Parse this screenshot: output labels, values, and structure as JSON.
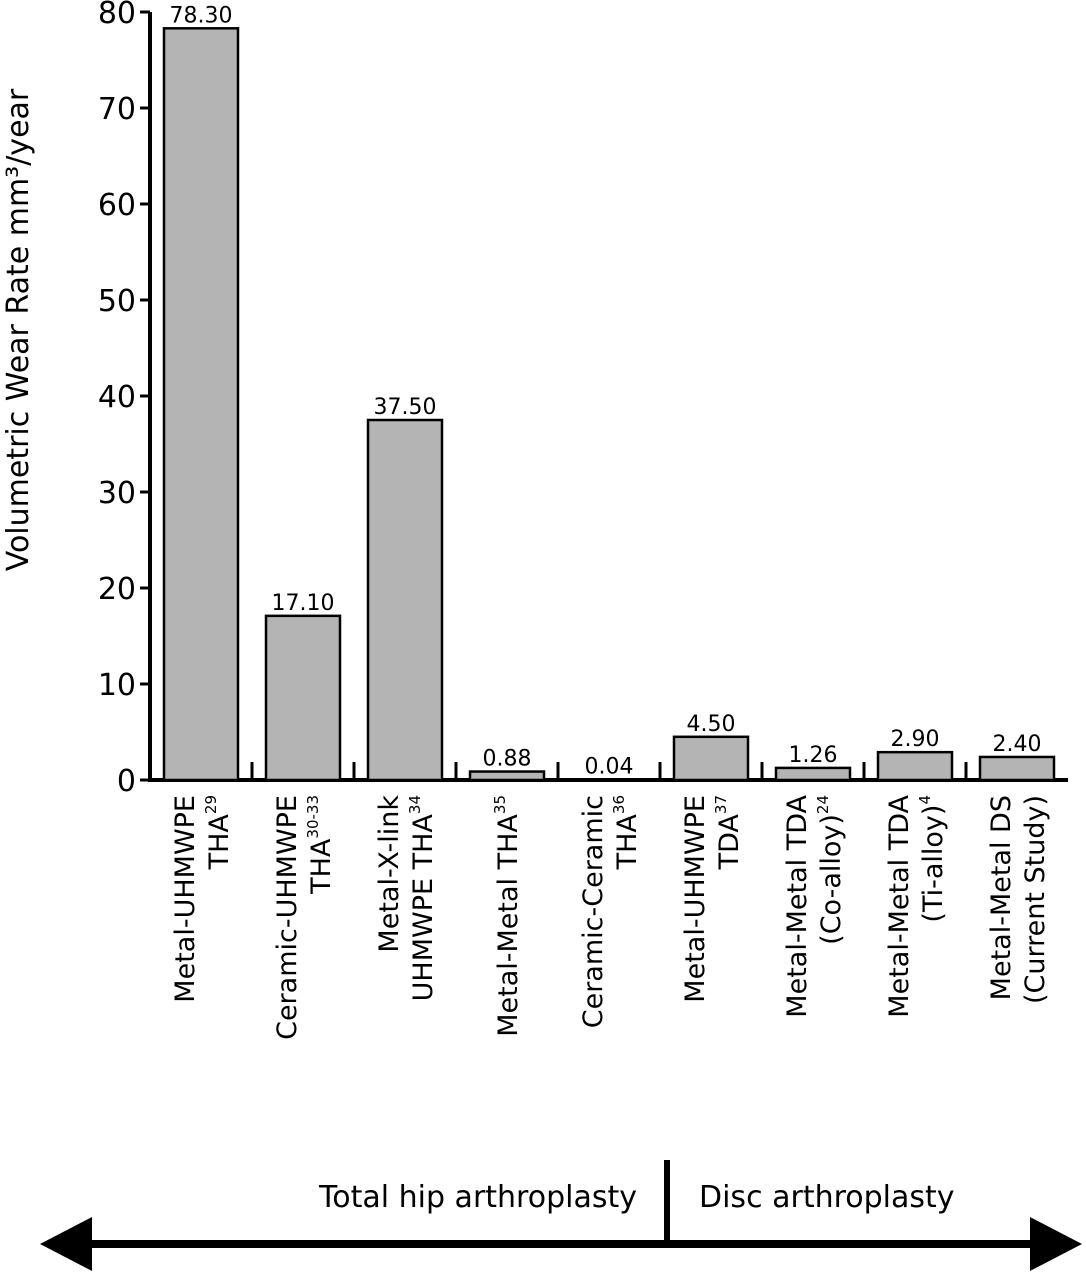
{
  "chart_data": {
    "type": "bar",
    "ylabel": "Volumetric Wear Rate mm³/year",
    "ylim": [
      0,
      80
    ],
    "yticks": [
      0,
      10,
      20,
      30,
      40,
      50,
      60,
      70,
      80
    ],
    "bar_color": "#b4b4b4",
    "categories": [
      {
        "lines": [
          {
            "text": "Metal-UHMWPE"
          },
          {
            "text": "THA",
            "sup": "29"
          }
        ]
      },
      {
        "lines": [
          {
            "text": "Ceramic-UHMWPE"
          },
          {
            "text": "THA",
            "sup": "30-33"
          }
        ]
      },
      {
        "lines": [
          {
            "text": "Metal-X-link"
          },
          {
            "text": "UHMWPE THA",
            "sup": "34"
          }
        ]
      },
      {
        "lines": [
          {
            "text": "Metal-Metal THA",
            "sup": "35"
          }
        ]
      },
      {
        "lines": [
          {
            "text": "Ceramic-Ceramic"
          },
          {
            "text": "THA",
            "sup": "36"
          }
        ]
      },
      {
        "lines": [
          {
            "text": "Metal-UHMWPE"
          },
          {
            "text": "TDA",
            "sup": "37"
          }
        ]
      },
      {
        "lines": [
          {
            "text": "Metal-Metal TDA"
          },
          {
            "text": "(Co-alloy)",
            "sup": "24"
          }
        ]
      },
      {
        "lines": [
          {
            "text": "Metal-Metal TDA"
          },
          {
            "text": "(Ti-alloy)",
            "sup": "4"
          }
        ]
      },
      {
        "lines": [
          {
            "text": "Metal-Metal DS"
          },
          {
            "text": "(Current Study)"
          }
        ]
      }
    ],
    "values": [
      78.3,
      17.1,
      37.5,
      0.88,
      0.04,
      4.5,
      1.26,
      2.9,
      2.4
    ],
    "value_labels": [
      "78.30",
      "17.10",
      "37.50",
      "0.88",
      "0.04",
      "4.50",
      "1.26",
      "2.90",
      "2.40"
    ],
    "groups": [
      {
        "label": "Total hip arthroplasty",
        "categories": [
          0,
          4
        ]
      },
      {
        "label": "Disc arthroplasty",
        "categories": [
          5,
          8
        ]
      }
    ]
  }
}
